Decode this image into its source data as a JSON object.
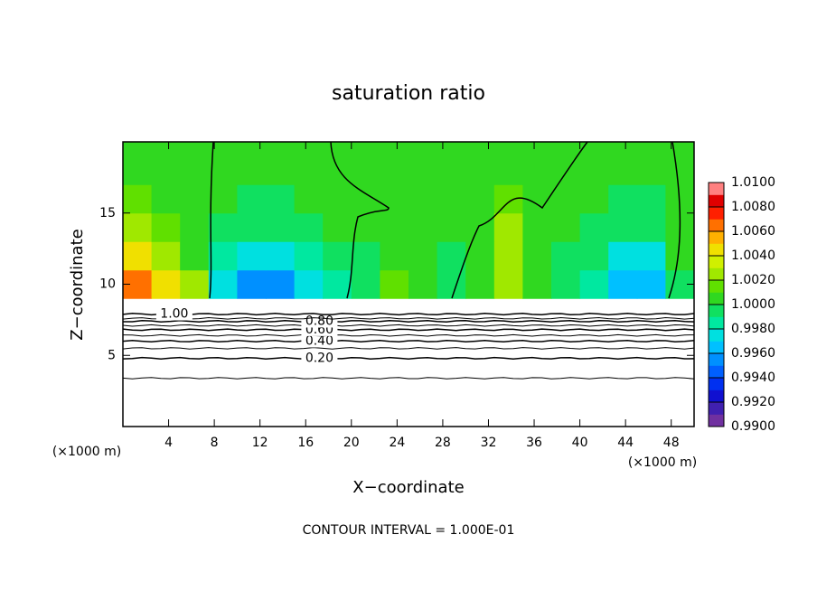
{
  "chart_data": {
    "type": "contour",
    "title": "saturation ratio",
    "xlabel": "X−coordinate",
    "ylabel": "Z−coordinate",
    "x_unit": "(×1000 m)",
    "footer": "CONTOUR INTERVAL = 1.000E-01",
    "xlim": [
      0,
      50
    ],
    "ylim": [
      0,
      20
    ],
    "xticks": [
      4,
      8,
      12,
      16,
      20,
      24,
      28,
      32,
      36,
      40,
      44,
      48
    ],
    "yticks": [
      5,
      10,
      15
    ],
    "x_edges": [
      0,
      2.5,
      5,
      7.5,
      10,
      12.5,
      15,
      17.5,
      20,
      22.5,
      25,
      27.5,
      30,
      32.5,
      35,
      37.5,
      40,
      42.5,
      45,
      47.5,
      50
    ],
    "y_edges": [
      9,
      11,
      13,
      15,
      17,
      20
    ],
    "z": [
      [
        1.006,
        1.005,
        1.0025,
        0.997,
        0.995,
        0.995,
        0.997,
        0.998,
        0.999,
        1.0015,
        1.001,
        0.9995,
        1.0005,
        1.002,
        1.001,
        0.999,
        0.998,
        0.996,
        0.996,
        0.999
      ],
      [
        1.004,
        1.0025,
        1.001,
        0.998,
        0.997,
        0.997,
        0.9985,
        0.999,
        0.9995,
        1.001,
        1.0005,
        0.9995,
        1.001,
        1.0025,
        1.001,
        0.9995,
        0.999,
        0.9975,
        0.9975,
        1.0
      ],
      [
        1.002,
        1.0015,
        1.0005,
        0.9995,
        0.999,
        0.999,
        0.9995,
        1.0,
        1.0,
        1.0005,
        1.0005,
        1.0,
        1.001,
        1.002,
        1.001,
        1.0,
        0.9995,
        0.999,
        0.999,
        1.0005
      ],
      [
        1.0015,
        1.001,
        1.0005,
        1.0,
        0.9995,
        0.9995,
        1.0,
        1.0005,
        1.0,
        1.0005,
        1.0005,
        1.0005,
        1.001,
        1.0015,
        1.001,
        1.0005,
        1.0,
        0.9995,
        0.9995,
        1.0005
      ],
      [
        1.001,
        1.0005,
        1.0005,
        1.0005,
        1.0005,
        1.0005,
        1.0005,
        1.0005,
        1.0005,
        1.0005,
        1.0005,
        1.0005,
        1.0005,
        1.001,
        1.0005,
        1.0005,
        1.0005,
        1.0005,
        1.0005,
        1.0005
      ]
    ],
    "colorbar": {
      "lim": [
        0.99,
        1.01
      ],
      "ticks": [
        {
          "value": 0.99,
          "label": "0.9900"
        },
        {
          "value": 0.992,
          "label": "0.9920"
        },
        {
          "value": 0.994,
          "label": "0.9940"
        },
        {
          "value": 0.996,
          "label": "0.9960"
        },
        {
          "value": 0.998,
          "label": "0.9980"
        },
        {
          "value": 1.0,
          "label": "1.0000"
        },
        {
          "value": 1.002,
          "label": "1.0020"
        },
        {
          "value": 1.004,
          "label": "1.0040"
        },
        {
          "value": 1.006,
          "label": "1.0060"
        },
        {
          "value": 1.008,
          "label": "1.0080"
        },
        {
          "value": 1.01,
          "label": "1.0100"
        }
      ],
      "colors": [
        "#7030a0",
        "#4020b0",
        "#1010d0",
        "#0030f0",
        "#0060ff",
        "#0090ff",
        "#00c0ff",
        "#00e0e0",
        "#00e8a0",
        "#10e060",
        "#30d820",
        "#60e000",
        "#a0e800",
        "#d0f000",
        "#f0e000",
        "#ffb000",
        "#ff7000",
        "#ff2000",
        "#e00000",
        "#ff8080"
      ]
    },
    "contours": [
      {
        "level": 0.1,
        "y": 3.4
      },
      {
        "level": 0.2,
        "label": "0.20",
        "y": 4.8
      },
      {
        "level": 0.3,
        "y": 5.5
      },
      {
        "level": 0.4,
        "label": "0.40",
        "y": 6.0
      },
      {
        "level": 0.5,
        "y": 6.4
      },
      {
        "level": 0.6,
        "label": "0.60",
        "y": 6.8
      },
      {
        "level": 0.7,
        "y": 7.1
      },
      {
        "level": 0.8,
        "label": "0.80",
        "y": 7.4
      },
      {
        "level": 0.9,
        "y": 7.6
      },
      {
        "level": 1.0,
        "label": "1.00",
        "y": 7.9
      }
    ]
  }
}
